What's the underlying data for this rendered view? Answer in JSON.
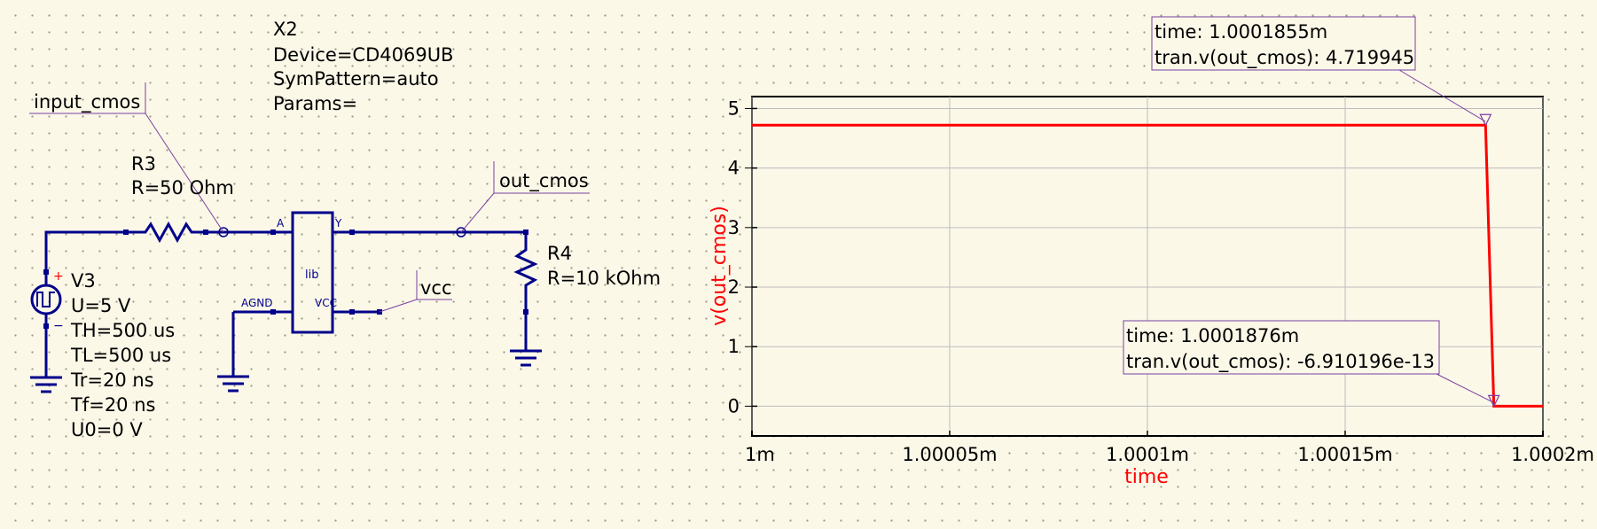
{
  "schematic": {
    "x2": {
      "name": "X2",
      "device": "Device=CD4069UB",
      "sympattern": "SymPattern=auto",
      "params": "Params=",
      "pin_a": "A",
      "pin_y": "Y",
      "pin_vcc": "VCC",
      "pin_agnd": "AGND",
      "body": "lib"
    },
    "r3": {
      "name": "R3",
      "value": "R=50 Ohm"
    },
    "r4": {
      "name": "R4",
      "value": "R=10 kOhm"
    },
    "v3": {
      "name": "V3",
      "u": "U=5 V",
      "th": "TH=500 us",
      "tl": "TL=500 us",
      "tr": "Tr=20 ns",
      "tf": "Tf=20 ns",
      "u0": "U0=0 V",
      "plus": "+",
      "minus": "−"
    },
    "labels": {
      "input": "input_cmos",
      "output": "out_cmos",
      "vcc": "vcc"
    }
  },
  "chart_data": {
    "type": "line",
    "xlabel": "time",
    "ylabel": "v(out_cmos)",
    "xlim": [
      1.0,
      1.0002
    ],
    "ylim": [
      -0.5,
      5.2
    ],
    "x_ticks": [
      1.0,
      1.00005,
      1.0001,
      1.00015,
      1.0002
    ],
    "x_tick_labels": [
      "1m",
      "1.00005m",
      "1.0001m",
      "1.00015m",
      "1.0002m"
    ],
    "y_ticks": [
      0,
      1,
      2,
      3,
      4,
      5
    ],
    "y_tick_labels": [
      "0",
      "1",
      "2",
      "3",
      "4",
      "5"
    ],
    "grid": true,
    "series": [
      {
        "color": "#ff0000",
        "x": [
          1.0,
          1.0001855,
          1.0001876,
          1.0002
        ],
        "y": [
          4.719945,
          4.719945,
          0,
          0
        ]
      }
    ],
    "markers": [
      {
        "x": 1.0001855,
        "y": 4.719945,
        "line1": "time: 1.0001855m",
        "line2": "tran.v(out_cmos): 4.719945"
      },
      {
        "x": 1.0001876,
        "y": 0,
        "line1": "time: 1.0001876m",
        "line2": "tran.v(out_cmos): -6.910196e-13"
      }
    ]
  }
}
